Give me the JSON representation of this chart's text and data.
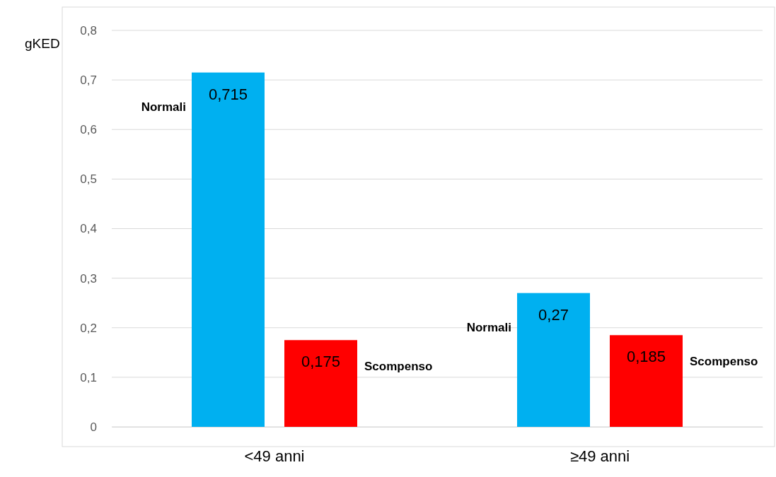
{
  "chart_data": {
    "type": "bar",
    "ylabel": "gKED",
    "categories": [
      "<49 anni",
      "≥49 anni"
    ],
    "series": [
      {
        "name": "Normali",
        "color": "#00b0f0",
        "values": [
          0.715,
          0.27
        ],
        "value_labels": [
          "0,715",
          "0,27"
        ]
      },
      {
        "name": "Scompenso",
        "color": "#ff0000",
        "values": [
          0.175,
          0.185
        ],
        "value_labels": [
          "0,175",
          "0,185"
        ]
      }
    ],
    "ylim": [
      0,
      0.8
    ],
    "yticks": [
      {
        "value": 0,
        "label": "0"
      },
      {
        "value": 0.1,
        "label": "0,1"
      },
      {
        "value": 0.2,
        "label": "0,2"
      },
      {
        "value": 0.3,
        "label": "0,3"
      },
      {
        "value": 0.4,
        "label": "0,4"
      },
      {
        "value": 0.5,
        "label": "0,5"
      },
      {
        "value": 0.6,
        "label": "0,6"
      },
      {
        "value": 0.7,
        "label": "0,7"
      },
      {
        "value": 0.8,
        "label": "0,8"
      }
    ],
    "grid": "y",
    "legend": false
  }
}
